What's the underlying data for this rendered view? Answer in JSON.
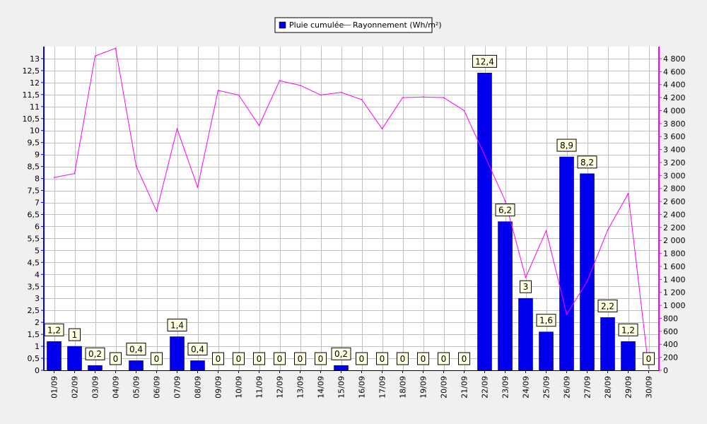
{
  "chart_data": {
    "type": "bar",
    "categories": [
      "01/09",
      "02/09",
      "03/09",
      "04/09",
      "05/09",
      "06/09",
      "07/09",
      "08/09",
      "09/09",
      "10/09",
      "11/09",
      "12/09",
      "13/09",
      "14/09",
      "15/09",
      "16/09",
      "17/09",
      "18/09",
      "19/09",
      "20/09",
      "21/09",
      "22/09",
      "23/09",
      "24/09",
      "25/09",
      "26/09",
      "27/09",
      "28/09",
      "29/09",
      "30/09"
    ],
    "series": [
      {
        "name": "Pluie cumulée",
        "type": "bar",
        "axis": "left",
        "color": "#0000ee",
        "values": [
          1.2,
          1,
          0.2,
          0,
          0.4,
          0,
          1.4,
          0.4,
          0,
          0,
          0,
          0,
          0,
          0,
          0.2,
          0,
          0,
          0,
          0,
          0,
          0,
          12.4,
          6.2,
          3,
          1.6,
          8.9,
          8.2,
          2.2,
          1.2,
          0
        ],
        "labels": [
          "1,2",
          "1",
          "0,2",
          "0",
          "0,4",
          "0",
          "1,4",
          "0,4",
          "0",
          "0",
          "0",
          "0",
          "0",
          "0",
          "0,2",
          "0",
          "0",
          "0",
          "0",
          "0",
          "0",
          "12,4",
          "6,2",
          "3",
          "1,6",
          "8,9",
          "8,2",
          "2,2",
          "1,2",
          "0"
        ]
      },
      {
        "name": "Rayonnement (Wh/m²)",
        "type": "line",
        "axis": "right",
        "color": "#ff00ff",
        "values": [
          2970,
          3030,
          4840,
          4960,
          3150,
          2450,
          3720,
          2820,
          4310,
          4240,
          3770,
          4460,
          4390,
          4240,
          4280,
          4170,
          3720,
          4200,
          4210,
          4200,
          4000,
          3310,
          2610,
          1430,
          2150,
          860,
          1370,
          2160,
          2720,
          30
        ]
      }
    ],
    "left_axis": {
      "ylim": [
        0,
        13.5
      ],
      "ticks": [
        0,
        0.5,
        1,
        1.5,
        2,
        2.5,
        3,
        3.5,
        4,
        4.5,
        5,
        5.5,
        6,
        6.5,
        7,
        7.5,
        8,
        8.5,
        9,
        9.5,
        10,
        10.5,
        11,
        11.5,
        12,
        12.5,
        13
      ],
      "tick_labels": [
        "0",
        "0,5",
        "1",
        "1,5",
        "2",
        "2,5",
        "3",
        "3,5",
        "4",
        "4,5",
        "5",
        "5,5",
        "6",
        "6,5",
        "7",
        "7,5",
        "8",
        "8,5",
        "9",
        "9,5",
        "10",
        "10,5",
        "11",
        "11,5",
        "12",
        "12,5",
        "13"
      ]
    },
    "right_axis": {
      "ylim": [
        0,
        4985
      ],
      "ticks": [
        0,
        200,
        400,
        600,
        800,
        1000,
        1200,
        1400,
        1600,
        1800,
        2000,
        2200,
        2400,
        2600,
        2800,
        3000,
        3200,
        3400,
        3600,
        3800,
        4000,
        4200,
        4400,
        4600,
        4800
      ],
      "tick_labels": [
        "0",
        "200",
        "400",
        "600",
        "800",
        "1 000",
        "1 200",
        "1 400",
        "1 600",
        "1 800",
        "2 000",
        "2 200",
        "2 400",
        "2 600",
        "2 800",
        "3 000",
        "3 200",
        "3 400",
        "3 600",
        "3 800",
        "4 000",
        "4 200",
        "4 400",
        "4 600",
        "4 800"
      ]
    },
    "legend": {
      "position": "top-center",
      "entries": [
        "Pluie cumulée",
        "Rayonnement (Wh/m²)"
      ]
    },
    "grid": true,
    "colors": {
      "background": "#f0f0f0",
      "plot_background": "#ffffff",
      "grid": "#c0c0c0",
      "left_axis": "#0000ee",
      "right_axis": "#ff00ff",
      "label_box": "#ffffe1"
    }
  }
}
